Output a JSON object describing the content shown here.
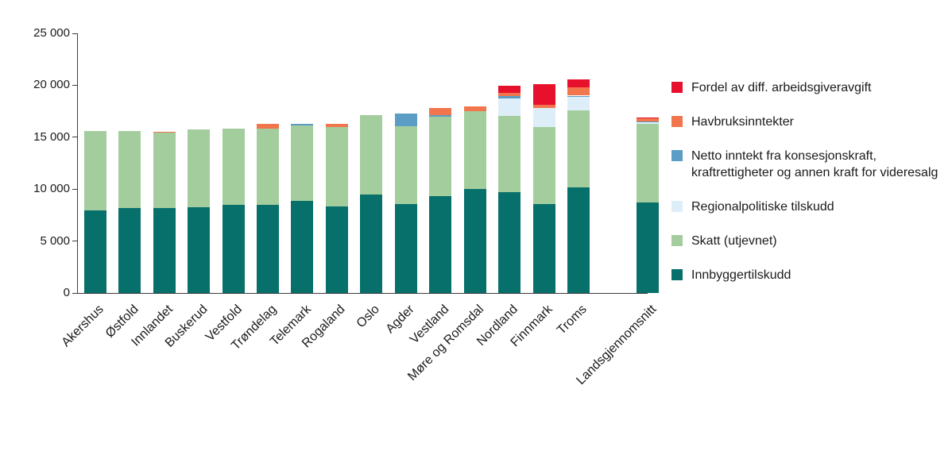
{
  "chart_data": {
    "type": "bar",
    "stacked": true,
    "title": "",
    "xlabel": "",
    "ylabel": "",
    "grid": false,
    "ylim": [
      0,
      25000
    ],
    "yticks": [
      0,
      5000,
      10000,
      15000,
      20000,
      25000
    ],
    "ytick_labels": [
      "0",
      "5 000",
      "10 000",
      "15 000",
      "20 000",
      "25 000"
    ],
    "categories": [
      "Akershus",
      "Østfold",
      "Innlandet",
      "Buskerud",
      "Vestfold",
      "Trøndelag",
      "Telemark",
      "Rogaland",
      "Oslo",
      "Agder",
      "Vestland",
      "Møre og Romsdal",
      "Nordland",
      "Finnmark",
      "Troms",
      "Landsgjennomsnitt"
    ],
    "gap_before_last": true,
    "series": [
      {
        "name": "Innbyggertilskudd",
        "color": "#07706b",
        "values": [
          7950,
          8200,
          8200,
          8250,
          8450,
          8450,
          8850,
          8350,
          9500,
          8600,
          9350,
          10000,
          9700,
          8600,
          10200,
          8750
        ]
      },
      {
        "name": "Skatt (utjevnet)",
        "color": "#a3cd9d",
        "values": [
          7650,
          7400,
          7250,
          7500,
          7400,
          7400,
          7300,
          7600,
          7650,
          7450,
          7600,
          7500,
          7350,
          7400,
          7400,
          7500
        ]
      },
      {
        "name": "Regionalpolitiske tilskudd",
        "color": "#ddeef8",
        "values": [
          0,
          0,
          0,
          0,
          0,
          0,
          0,
          0,
          0,
          0,
          0,
          0,
          1650,
          1800,
          1300,
          200
        ]
      },
      {
        "name": "Netto inntekt fra konsesjonskraft, kraftrettigheter og annen kraft for videresalg",
        "color": "#5b9dc4",
        "values": [
          0,
          0,
          0,
          0,
          0,
          0,
          150,
          0,
          0,
          1250,
          200,
          0,
          250,
          0,
          100,
          100
        ]
      },
      {
        "name": "Havbruksinntekter",
        "color": "#f1764d",
        "values": [
          0,
          0,
          100,
          0,
          0,
          450,
          0,
          300,
          0,
          0,
          650,
          450,
          350,
          300,
          800,
          250
        ]
      },
      {
        "name": "Fordel av diff. arbeidsgiveravgift",
        "color": "#e8112d",
        "values": [
          0,
          0,
          0,
          0,
          0,
          0,
          0,
          0,
          0,
          0,
          0,
          0,
          650,
          2000,
          750,
          100
        ]
      }
    ],
    "legend": {
      "position": "right",
      "items": [
        {
          "label": "Fordel av diff. arbeidsgiveravgift",
          "color": "#e8112d"
        },
        {
          "label": "Havbruksinntekter",
          "color": "#f1764d"
        },
        {
          "label": "Netto inntekt fra konsesjonskraft, kraftrettigheter og annen kraft for videresalg",
          "color": "#5b9dc4"
        },
        {
          "label": "Regionalpolitiske tilskudd",
          "color": "#ddeef8"
        },
        {
          "label": "Skatt (utjevnet)",
          "color": "#a3cd9d"
        },
        {
          "label": "Innbyggertilskudd",
          "color": "#07706b"
        }
      ]
    }
  }
}
